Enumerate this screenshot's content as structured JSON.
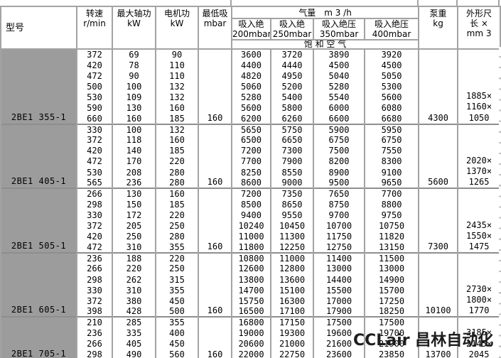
{
  "header": {
    "model": "型号",
    "speed": "转速\nr/min",
    "shaft_power": "最大轴功\nkW",
    "motor_power": "电机功\nkW",
    "min_suction": "最低吸\nmbar",
    "air_flow": "气量　m 3 /h",
    "air_cols": [
      "吸入绝\n200mbar",
      "吸入绝\n250mbar",
      "吸入绝压\n350mbar",
      "吸入绝压\n400mbar"
    ],
    "saturated_air": "饱 和 空 气",
    "pump_weight": "泵重\nkg",
    "dimensions": "外形尺\n长 ×\nmm 3"
  },
  "groups": [
    {
      "model": "2BE1 355-1",
      "min_suction": "160",
      "weight": "4300",
      "dims_text": "1885×\n1160×\n1050",
      "rows": [
        [
          "372",
          "69",
          "90",
          "3600",
          "3720",
          "3890",
          "3920"
        ],
        [
          "420",
          "78",
          "110",
          "4400",
          "4440",
          "4500",
          "4500"
        ],
        [
          "472",
          "90",
          "110",
          "4820",
          "4950",
          "5040",
          "5050"
        ],
        [
          "500",
          "100",
          "132",
          "5060",
          "5200",
          "5280",
          "5300"
        ],
        [
          "530",
          "109",
          "132",
          "5280",
          "5400",
          "5540",
          "5600"
        ],
        [
          "590",
          "130",
          "160",
          "5600",
          "5800",
          "6000",
          "6080"
        ],
        [
          "660",
          "160",
          "185",
          "6200",
          "6260",
          "6600",
          "6680"
        ]
      ]
    },
    {
      "model": "2BE1 405-1",
      "min_suction": "160",
      "weight": "5600",
      "dims_text": "2020×\n1370×\n1265",
      "rows": [
        [
          "330",
          "100",
          "132",
          "5650",
          "5750",
          "5900",
          "5950"
        ],
        [
          "372",
          "118",
          "160",
          "6500",
          "6650",
          "6750",
          "6750"
        ],
        [
          "420",
          "140",
          "185",
          "7200",
          "7300",
          "7500",
          "7550"
        ],
        [
          "472",
          "170",
          "220",
          "7700",
          "7900",
          "8200",
          "8300"
        ],
        [
          "530",
          "208",
          "280",
          "8250",
          "8550",
          "8900",
          "9100"
        ],
        [
          "565",
          "236",
          "280",
          "8600",
          "9000",
          "9500",
          "9650"
        ]
      ]
    },
    {
      "model": "2BE1 505-1",
      "min_suction": "160",
      "weight": "7300",
      "dims_text": "2435×\n1550×\n1475",
      "rows": [
        [
          "266",
          "130",
          "160",
          "7200",
          "7350",
          "7650",
          "7700"
        ],
        [
          "298",
          "150",
          "185",
          "8500",
          "8650",
          "8750",
          "8800"
        ],
        [
          "330",
          "172",
          "220",
          "9400",
          "9550",
          "9700",
          "9750"
        ],
        [
          "372",
          "205",
          "250",
          "10240",
          "10450",
          "10700",
          "10750"
        ],
        [
          "420",
          "250",
          "280",
          "11000",
          "11300",
          "11750",
          "11820"
        ],
        [
          "472",
          "310",
          "355",
          "11800",
          "12250",
          "12750",
          "13150"
        ]
      ]
    },
    {
      "model": "2BE1 605-1",
      "min_suction": "160",
      "weight": "10100",
      "dims_text": "2730×\n1800×\n1770",
      "rows": [
        [
          "236",
          "188",
          "220",
          "10800",
          "11000",
          "11400",
          "11500"
        ],
        [
          "266",
          "220",
          "250",
          "12600",
          "12800",
          "13000",
          "13000"
        ],
        [
          "298",
          "262",
          "315",
          "13800",
          "13600",
          "14400",
          "14900"
        ],
        [
          "330",
          "310",
          "355",
          "14700",
          "15100",
          "15500",
          "15700"
        ],
        [
          "372",
          "380",
          "450",
          "15750",
          "16300",
          "17000",
          "17250"
        ],
        [
          "398",
          "428",
          "500",
          "16500",
          "17100",
          "17900",
          "18250"
        ]
      ]
    },
    {
      "model": "2BE1 705-1",
      "min_suction": "160",
      "weight": "13700",
      "dims_text": "3185×\n2145×\n2045",
      "rows": [
        [
          "210",
          "285",
          "355",
          "16800",
          "17150",
          "17500",
          "17500"
        ],
        [
          "236",
          "335",
          "400",
          "19000",
          "19300",
          "19600",
          "19700"
        ],
        [
          "266",
          "405",
          "450",
          "20600",
          "21000",
          "21600",
          "21900"
        ],
        [
          "298",
          "490",
          "560",
          "22000",
          "22750",
          "23600",
          "23850"
        ]
      ]
    }
  ],
  "watermark": "CCLair 昌林自动化"
}
